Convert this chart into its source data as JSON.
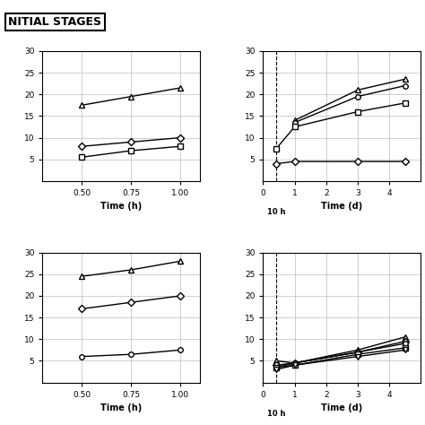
{
  "title": "NITIAL STAGES",
  "top_left": {
    "x": [
      0.5,
      0.75,
      1.0
    ],
    "series": {
      "triangle": [
        17.5,
        19.5,
        21.5
      ],
      "diamond": [
        8.0,
        9.0,
        10.0
      ],
      "square": [
        5.5,
        7.0,
        8.0
      ]
    },
    "xlabel": "Time (h)",
    "xlim": [
      0.3,
      1.1
    ],
    "ylim": [
      0,
      30
    ],
    "xticks": [
      0.5,
      0.75,
      1.0
    ],
    "yticks": [
      5,
      10,
      15,
      20,
      25,
      30
    ]
  },
  "top_right": {
    "x": [
      0.417,
      1.0,
      3.0,
      4.5
    ],
    "series": {
      "triangle": [
        null,
        14.0,
        21.0,
        23.5
      ],
      "circle": [
        null,
        13.5,
        19.5,
        22.0
      ],
      "square": [
        7.5,
        12.5,
        16.0,
        18.0
      ],
      "diamond": [
        4.0,
        4.5,
        4.5,
        4.5
      ]
    },
    "x_10h": 0.417,
    "xlabel": "Time (d)",
    "xlim": [
      0,
      5.0
    ],
    "ylim": [
      0,
      30
    ],
    "xticks": [
      0,
      1,
      2,
      3,
      4
    ],
    "yticks": [
      5,
      10,
      15,
      20,
      25,
      30
    ]
  },
  "bottom_left": {
    "x": [
      0.5,
      0.75,
      1.0
    ],
    "series": {
      "triangle": [
        24.5,
        26.0,
        28.0
      ],
      "diamond": [
        17.0,
        18.5,
        20.0
      ],
      "circle": [
        6.0,
        6.5,
        7.5
      ]
    },
    "xlabel": "Time (h)",
    "xlim": [
      0.3,
      1.1
    ],
    "ylim": [
      0,
      30
    ],
    "xticks": [
      0.5,
      0.75,
      1.0
    ],
    "yticks": [
      5,
      10,
      15,
      20,
      25,
      30
    ]
  },
  "bottom_right": {
    "x": [
      0.417,
      1.0,
      3.0,
      4.5
    ],
    "series": {
      "s1": [
        5.0,
        4.5,
        7.5,
        10.5
      ],
      "s2": [
        4.0,
        4.5,
        7.0,
        9.5
      ],
      "s3": [
        3.5,
        4.5,
        7.0,
        9.0
      ],
      "s4": [
        3.5,
        4.0,
        6.5,
        8.0
      ],
      "s5": [
        3.0,
        4.0,
        6.0,
        7.5
      ]
    },
    "x_10h": 0.417,
    "xlabel": "Time (d)",
    "xlim": [
      0,
      5.0
    ],
    "ylim": [
      0,
      30
    ],
    "xticks": [
      0,
      1,
      2,
      3,
      4
    ],
    "yticks": [
      5,
      10,
      15,
      20,
      25,
      30
    ]
  },
  "line_color": "#000000",
  "bg_color": "#ffffff",
  "grid_color": "#bbbbbb"
}
